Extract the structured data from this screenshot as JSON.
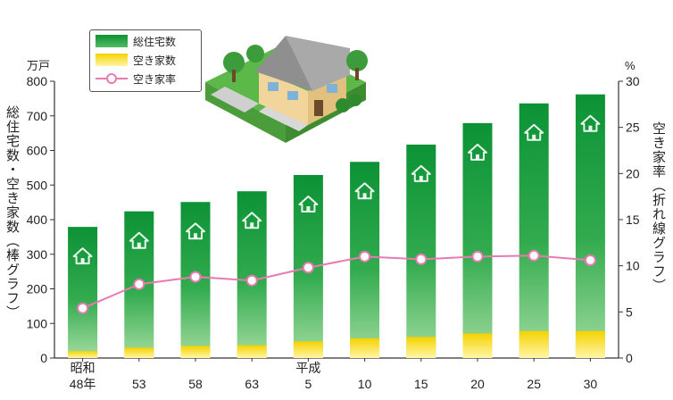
{
  "chart_data": {
    "type": "bar",
    "left_axis_unit": "万戸",
    "right_axis_unit": "%",
    "ylabel_left": "総住宅数・空き家数（棒グラフ）",
    "ylabel_right": "空き家率（折れ線グラフ）",
    "ylim_left": [
      0,
      800
    ],
    "ylim_right": [
      0,
      30
    ],
    "yticks_left": [
      "0",
      "100",
      "200",
      "300",
      "400",
      "500",
      "600",
      "700",
      "800"
    ],
    "yticks_right": [
      "0",
      "5",
      "10",
      "15",
      "20",
      "25",
      "30"
    ],
    "categories": [
      {
        "era": "昭和",
        "label": "48年"
      },
      {
        "era": "",
        "label": "53"
      },
      {
        "era": "",
        "label": "58"
      },
      {
        "era": "",
        "label": "63"
      },
      {
        "era": "平成",
        "label": "5"
      },
      {
        "era": "",
        "label": "10"
      },
      {
        "era": "",
        "label": "15"
      },
      {
        "era": "",
        "label": "20"
      },
      {
        "era": "",
        "label": "25"
      },
      {
        "era": "",
        "label": "30"
      }
    ],
    "series": [
      {
        "name": "総住宅数",
        "type": "bar",
        "axis": "left",
        "color": "#1a9a3c",
        "values": [
          379,
          424,
          451,
          482,
          529,
          567,
          617,
          679,
          736,
          762
        ]
      },
      {
        "name": "空き家数",
        "type": "bar",
        "axis": "left",
        "color": "#f2d40a",
        "values": [
          20,
          30,
          35,
          37,
          48,
          57,
          61,
          71,
          78,
          78
        ]
      },
      {
        "name": "空き家率",
        "type": "line",
        "axis": "right",
        "color": "#e97ab1",
        "values": [
          5.4,
          8.0,
          8.8,
          8.4,
          9.8,
          11.0,
          10.7,
          11.0,
          11.1,
          10.6
        ]
      }
    ],
    "legend_position": "top-left"
  }
}
